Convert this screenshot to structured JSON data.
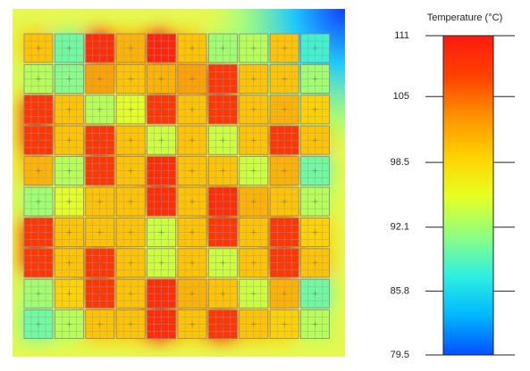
{
  "chart_data": {
    "type": "heatmap",
    "colorbar_label": "Temperature (°C)",
    "ylim": [
      79.5,
      111
    ],
    "yticks": [
      111,
      105,
      98.5,
      92.1,
      85.8,
      79.5
    ],
    "colormap": [
      "#0050ff",
      "#00b8ff",
      "#30f0e0",
      "#90ff80",
      "#e8ff20",
      "#ffd000",
      "#ff9000",
      "#ff4000",
      "#ff1a10"
    ],
    "values": [
      [
        100,
        90,
        109,
        101,
        110,
        100,
        92,
        93,
        100,
        88
      ],
      [
        93,
        91,
        102,
        100,
        101,
        102,
        108,
        100,
        100,
        92
      ],
      [
        108,
        100,
        93,
        95,
        108,
        100,
        108,
        100,
        101,
        99
      ],
      [
        108,
        100,
        108,
        100,
        94,
        100,
        94,
        100,
        108,
        100
      ],
      [
        101,
        93,
        108,
        100,
        109,
        100,
        100,
        94,
        101,
        90
      ],
      [
        92,
        95,
        100,
        100,
        109,
        100,
        109,
        101,
        100,
        93
      ],
      [
        108,
        100,
        100,
        100,
        94,
        100,
        108,
        100,
        108,
        99
      ],
      [
        108,
        100,
        108,
        100,
        94,
        100,
        94,
        100,
        108,
        100
      ],
      [
        92,
        99,
        108,
        100,
        109,
        101,
        100,
        94,
        101,
        90
      ],
      [
        90,
        93,
        100,
        100,
        109,
        100,
        108,
        100,
        99,
        93
      ]
    ]
  }
}
